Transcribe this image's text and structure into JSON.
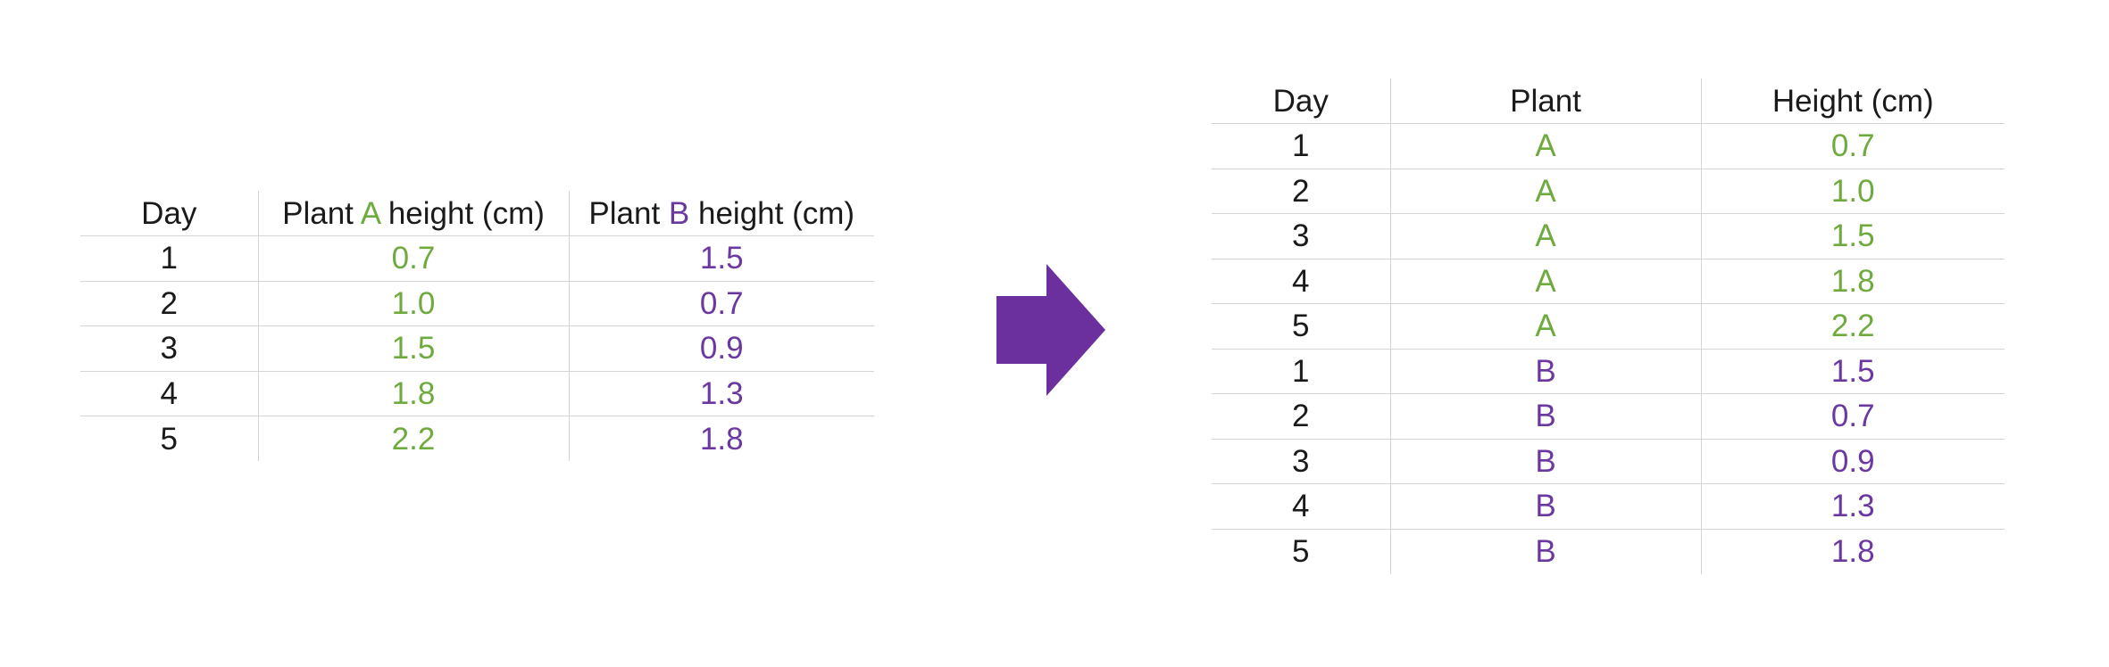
{
  "colors": {
    "plant_a": "#6faa3f",
    "plant_b": "#6b38a0",
    "arrow": "#6b2f9e",
    "gridline": "#d4d4d4"
  },
  "wide_table": {
    "headers": {
      "day": "Day",
      "plant_a": {
        "prefix": "Plant ",
        "letter": "A",
        "suffix": " height (cm)"
      },
      "plant_b": {
        "prefix": "Plant ",
        "letter": "B",
        "suffix": " height (cm)"
      }
    },
    "rows": [
      {
        "day": "1",
        "a": "0.7",
        "b": "1.5"
      },
      {
        "day": "2",
        "a": "1.0",
        "b": "0.7"
      },
      {
        "day": "3",
        "a": "1.5",
        "b": "0.9"
      },
      {
        "day": "4",
        "a": "1.8",
        "b": "1.3"
      },
      {
        "day": "5",
        "a": "2.2",
        "b": "1.8"
      }
    ]
  },
  "arrow_icon": "right-arrow-icon",
  "long_table": {
    "headers": {
      "day": "Day",
      "plant": "Plant",
      "height": "Height (cm)"
    },
    "rows": [
      {
        "day": "1",
        "plant": "A",
        "height": "0.7"
      },
      {
        "day": "2",
        "plant": "A",
        "height": "1.0"
      },
      {
        "day": "3",
        "plant": "A",
        "height": "1.5"
      },
      {
        "day": "4",
        "plant": "A",
        "height": "1.8"
      },
      {
        "day": "5",
        "plant": "A",
        "height": "2.2"
      },
      {
        "day": "1",
        "plant": "B",
        "height": "1.5"
      },
      {
        "day": "2",
        "plant": "B",
        "height": "0.7"
      },
      {
        "day": "3",
        "plant": "B",
        "height": "0.9"
      },
      {
        "day": "4",
        "plant": "B",
        "height": "1.3"
      },
      {
        "day": "5",
        "plant": "B",
        "height": "1.8"
      }
    ]
  }
}
